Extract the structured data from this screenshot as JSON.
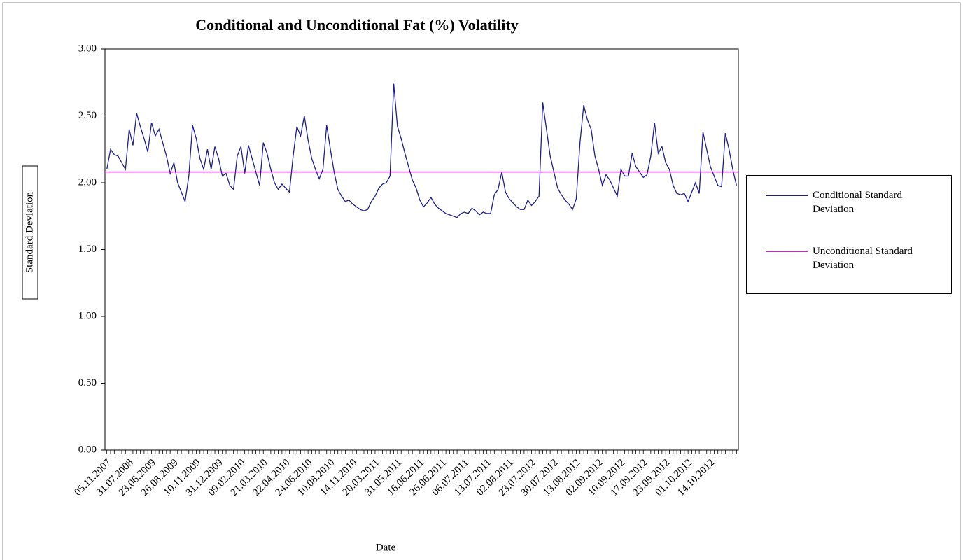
{
  "chart_data": {
    "type": "line",
    "title": "Conditional and Unconditional Fat (%) Volatility",
    "x_label": "Date",
    "y_label": "Standard Deviation",
    "categories": [
      "05.11.2007",
      null,
      null,
      null,
      null,
      null,
      "31.07.2008",
      null,
      null,
      null,
      null,
      null,
      "23.06.2009",
      null,
      null,
      null,
      null,
      null,
      "26.08.2009",
      null,
      null,
      null,
      null,
      null,
      "10.11.2009",
      null,
      null,
      null,
      null,
      null,
      "31.12.2009",
      null,
      null,
      null,
      null,
      null,
      "09.02.2010",
      null,
      null,
      null,
      null,
      null,
      "21.03.2010",
      null,
      null,
      null,
      null,
      null,
      "22.04.2010",
      null,
      null,
      null,
      null,
      null,
      "24.06.2010",
      null,
      null,
      null,
      null,
      null,
      "10.08.2010",
      null,
      null,
      null,
      null,
      null,
      "14.11.2010",
      null,
      null,
      null,
      null,
      null,
      "20.03.2011",
      null,
      null,
      null,
      null,
      null,
      "31.05.2011",
      null,
      null,
      null,
      null,
      null,
      "16.06.2011",
      null,
      null,
      null,
      null,
      null,
      "26.06.2011",
      null,
      null,
      null,
      null,
      null,
      "06.07.2011",
      null,
      null,
      null,
      null,
      null,
      "13.07.2011",
      null,
      null,
      null,
      null,
      null,
      "02.08.2011",
      null,
      null,
      null,
      null,
      null,
      "23.07.2012",
      null,
      null,
      null,
      null,
      null,
      "30.07.2012",
      null,
      null,
      null,
      null,
      null,
      "13.08.2012",
      null,
      null,
      null,
      null,
      null,
      "02.09.2012",
      null,
      null,
      null,
      null,
      null,
      "10.09.2012",
      null,
      null,
      null,
      null,
      null,
      "17.09.2012",
      null,
      null,
      null,
      null,
      null,
      "23.09.2012",
      null,
      null,
      null,
      null,
      null,
      "01.10.2012",
      null,
      null,
      null,
      null,
      null,
      "14.10.2012",
      null,
      null,
      null,
      null,
      null,
      null,
      null
    ],
    "series": [
      {
        "name": "Conditional Standard Deviation",
        "color": "#1f1f8f",
        "values": [
          2.1,
          2.25,
          2.21,
          2.2,
          2.15,
          2.1,
          2.4,
          2.28,
          2.52,
          2.42,
          2.33,
          2.23,
          2.45,
          2.35,
          2.4,
          2.3,
          2.2,
          2.07,
          2.15,
          2.0,
          1.93,
          1.86,
          2.05,
          2.43,
          2.33,
          2.18,
          2.1,
          2.25,
          2.1,
          2.27,
          2.18,
          2.05,
          2.07,
          1.98,
          1.95,
          2.2,
          2.27,
          2.07,
          2.28,
          2.18,
          2.08,
          1.98,
          2.3,
          2.22,
          2.1,
          2.0,
          1.95,
          1.99,
          1.96,
          1.93,
          2.2,
          2.42,
          2.35,
          2.5,
          2.32,
          2.18,
          2.1,
          2.03,
          2.1,
          2.43,
          2.25,
          2.08,
          1.95,
          1.9,
          1.86,
          1.87,
          1.84,
          1.82,
          1.8,
          1.79,
          1.8,
          1.86,
          1.9,
          1.96,
          1.99,
          2.0,
          2.05,
          2.74,
          2.42,
          2.33,
          2.22,
          2.12,
          2.02,
          1.96,
          1.87,
          1.82,
          1.85,
          1.89,
          1.84,
          1.81,
          1.79,
          1.77,
          1.76,
          1.75,
          1.74,
          1.77,
          1.78,
          1.77,
          1.81,
          1.79,
          1.76,
          1.78,
          1.77,
          1.77,
          1.91,
          1.95,
          2.08,
          1.93,
          1.88,
          1.85,
          1.82,
          1.8,
          1.8,
          1.87,
          1.83,
          1.86,
          1.9,
          2.6,
          2.4,
          2.2,
          2.08,
          1.96,
          1.91,
          1.87,
          1.84,
          1.8,
          1.88,
          2.3,
          2.58,
          2.47,
          2.4,
          2.2,
          2.1,
          1.98,
          2.06,
          2.02,
          1.96,
          1.9,
          2.1,
          2.05,
          2.05,
          2.22,
          2.12,
          2.08,
          2.04,
          2.06,
          2.2,
          2.45,
          2.22,
          2.27,
          2.15,
          2.1,
          1.98,
          1.92,
          1.91,
          1.92,
          1.86,
          1.93,
          2.0,
          1.92,
          2.38,
          2.25,
          2.12,
          2.05,
          1.98,
          1.97,
          2.37,
          2.25,
          2.1,
          1.98
        ]
      },
      {
        "name": "Unconditional Standard Deviation",
        "color": "#ff00ff",
        "value": 2.08
      }
    ],
    "ylim": [
      0,
      3
    ],
    "yticks": [
      {
        "value": 0,
        "label": "0.00"
      },
      {
        "value": 0.5,
        "label": "0.50"
      },
      {
        "value": 1,
        "label": "1.00"
      },
      {
        "value": 1.5,
        "label": "1.50"
      },
      {
        "value": 2,
        "label": "2.00"
      },
      {
        "value": 2.5,
        "label": "2.50"
      },
      {
        "value": 3,
        "label": "3.00"
      }
    ],
    "legend": "right"
  }
}
